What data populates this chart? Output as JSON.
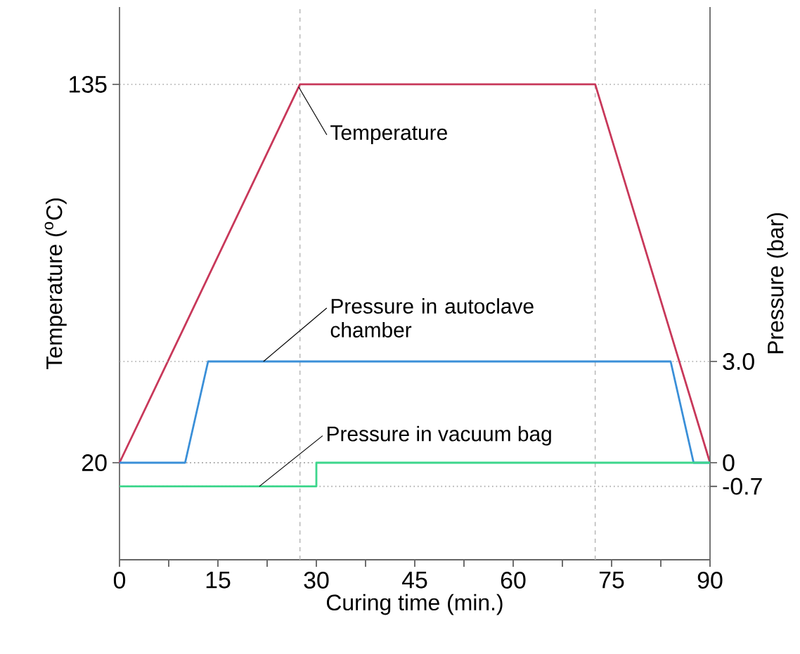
{
  "chart_data": {
    "type": "line",
    "xlabel": "Curing time (min.)",
    "ylabel": "Temperature ($^{o}$C)",
    "y2label": "Pressure (bar)",
    "xlim": [
      0,
      90
    ],
    "ylim": [
      -9.5,
      158.5
    ],
    "y2lim": [
      -2.875,
      13.5
    ],
    "xticks": [
      0,
      {
        "value": 7.5,
        "label": null
      },
      15,
      {
        "value": 22.5,
        "label": null
      },
      30,
      {
        "value": 37.5,
        "label": null
      },
      45,
      {
        "value": 52.5,
        "label": null
      },
      60,
      {
        "value": 67.5,
        "label": null
      },
      75,
      {
        "value": 82.5,
        "label": null
      },
      90
    ],
    "yticks": [
      20,
      135
    ],
    "y2ticks": [
      -0.7,
      0,
      {
        "value": 3,
        "label": "3.0"
      }
    ],
    "series": [
      {
        "name": "Temperature",
        "color": "#c8385a",
        "x": [
          0,
          27.5,
          72.5,
          90
        ],
        "values": [
          20,
          135,
          135,
          20
        ]
      },
      {
        "name": "Pressure in autoclave chamber",
        "color": "#3a8fd8",
        "axis": "y2",
        "x": [
          0,
          10,
          13.5,
          84,
          87.5,
          90
        ],
        "values": [
          0,
          0,
          3,
          3,
          0,
          0
        ]
      },
      {
        "name": "Pressure in vacuum bag",
        "color": "#3dd68c",
        "axis": "y2",
        "x": [
          0,
          30,
          30,
          90
        ],
        "values": [
          -0.7,
          -0.7,
          0,
          0
        ]
      }
    ],
    "ref_lines": [
      {
        "axis": "x",
        "value": 27.5,
        "color": "#bbbbbb",
        "line_style": "dashed"
      },
      {
        "axis": "x",
        "value": 72.5,
        "color": "#bbbbbb",
        "line_style": "dashed"
      }
    ],
    "grid": "y"
  }
}
